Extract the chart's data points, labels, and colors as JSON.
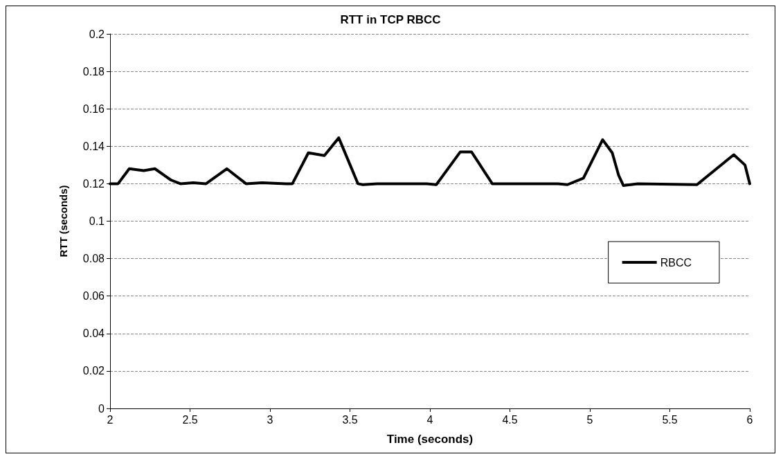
{
  "chart_data": {
    "type": "line",
    "title": "RTT in TCP RBCC",
    "xlabel": "Time (seconds)",
    "ylabel": "RTT (seconds)",
    "xlim": [
      2,
      6
    ],
    "xticks": [
      2,
      2.5,
      3,
      3.5,
      4,
      4.5,
      5,
      5.5,
      6
    ],
    "ylim": [
      0,
      0.2
    ],
    "yticks": [
      0,
      0.02,
      0.04,
      0.06,
      0.08,
      0.1,
      0.12,
      0.14,
      0.16,
      0.18,
      0.2
    ],
    "grid": "y",
    "legend": "right",
    "marker": "none",
    "line_style": "solid",
    "series": [
      {
        "name": "RBCC",
        "color": "#000000",
        "x": [
          2,
          2.05,
          2.12,
          2.21,
          2.28,
          2.38,
          2.44,
          2.52,
          2.6,
          2.73,
          2.85,
          2.95,
          3.1,
          3.14,
          3.24,
          3.34,
          3.43,
          3.55,
          3.58,
          3.67,
          3.98,
          4.04,
          4.19,
          4.26,
          4.39,
          4.8,
          4.86,
          4.96,
          5.08,
          5.14,
          5.18,
          5.21,
          5.3,
          5.67,
          5.9,
          5.97,
          6
        ],
        "values": [
          0.12,
          0.12,
          0.128,
          0.127,
          0.128,
          0.122,
          0.12,
          0.1205,
          0.12,
          0.128,
          0.12,
          0.1205,
          0.12,
          0.12,
          0.1365,
          0.135,
          0.1445,
          0.12,
          0.1195,
          0.12,
          0.12,
          0.1195,
          0.137,
          0.137,
          0.12,
          0.12,
          0.1195,
          0.123,
          0.1435,
          0.1365,
          0.1245,
          0.119,
          0.12,
          0.1195,
          0.1355,
          0.13,
          0.12
        ]
      }
    ]
  }
}
